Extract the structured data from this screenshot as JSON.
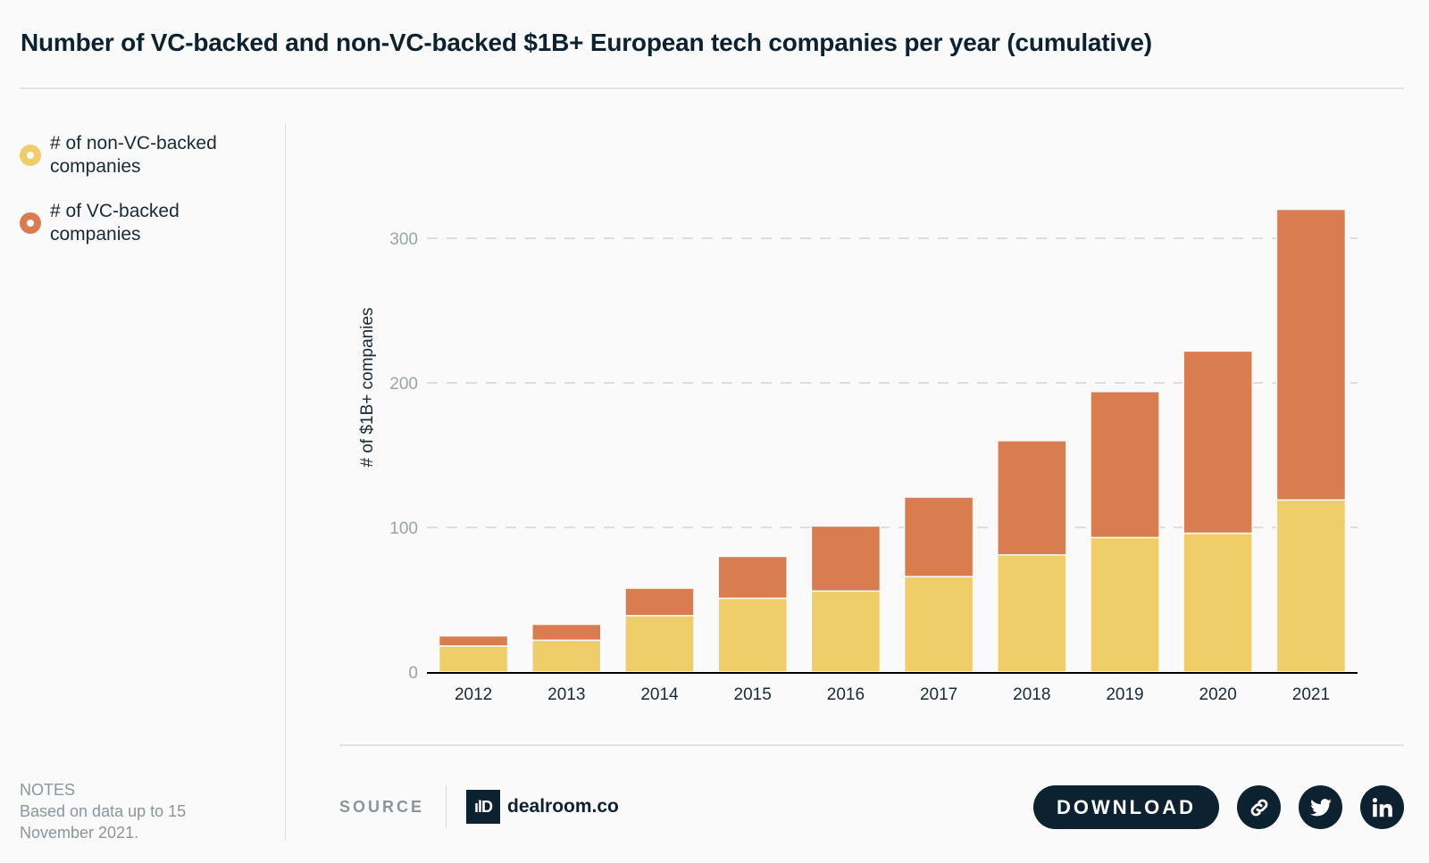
{
  "header": {
    "title": "Number of VC-backed and non-VC-backed $1B+ European tech companies per year (cumulative)"
  },
  "legend": {
    "items": [
      {
        "label": "# of non-VC-backed companies",
        "color": "#efcd68"
      },
      {
        "label": "# of VC-backed companies",
        "color": "#d97d50"
      }
    ]
  },
  "notes": {
    "heading": "NOTES",
    "text": "Based on data up to 15 November 2021."
  },
  "footer": {
    "source_label": "SOURCE",
    "source_logo_mark": "ılD",
    "source_name": "dealroom.co",
    "download_label": "DOWNLOAD",
    "share_icons": [
      "link-icon",
      "twitter-icon",
      "linkedin-icon"
    ]
  },
  "colors": {
    "non_vc": "#efcd68",
    "vc": "#d97d50",
    "ink": "#0c2230",
    "tick": "#9aa4aa",
    "grid": "#dddddd"
  },
  "chart_data": {
    "type": "bar",
    "stacked": true,
    "title": "Number of VC-backed and non-VC-backed $1B+ European tech companies per year (cumulative)",
    "xlabel": "",
    "ylabel": "# of $1B+ companies",
    "categories": [
      "2012",
      "2013",
      "2014",
      "2015",
      "2016",
      "2017",
      "2018",
      "2019",
      "2020",
      "2021"
    ],
    "series": [
      {
        "name": "# of non-VC-backed companies",
        "values": [
          18,
          22,
          39,
          51,
          56,
          66,
          81,
          93,
          96,
          119
        ]
      },
      {
        "name": "# of VC-backed companies",
        "values": [
          7,
          11,
          19,
          29,
          45,
          55,
          79,
          101,
          126,
          201
        ]
      }
    ],
    "ylim": [
      0,
      320
    ],
    "yticks": [
      0,
      100,
      200,
      300
    ],
    "grid": true,
    "grid_style": "dashed",
    "legend_position": "left"
  }
}
